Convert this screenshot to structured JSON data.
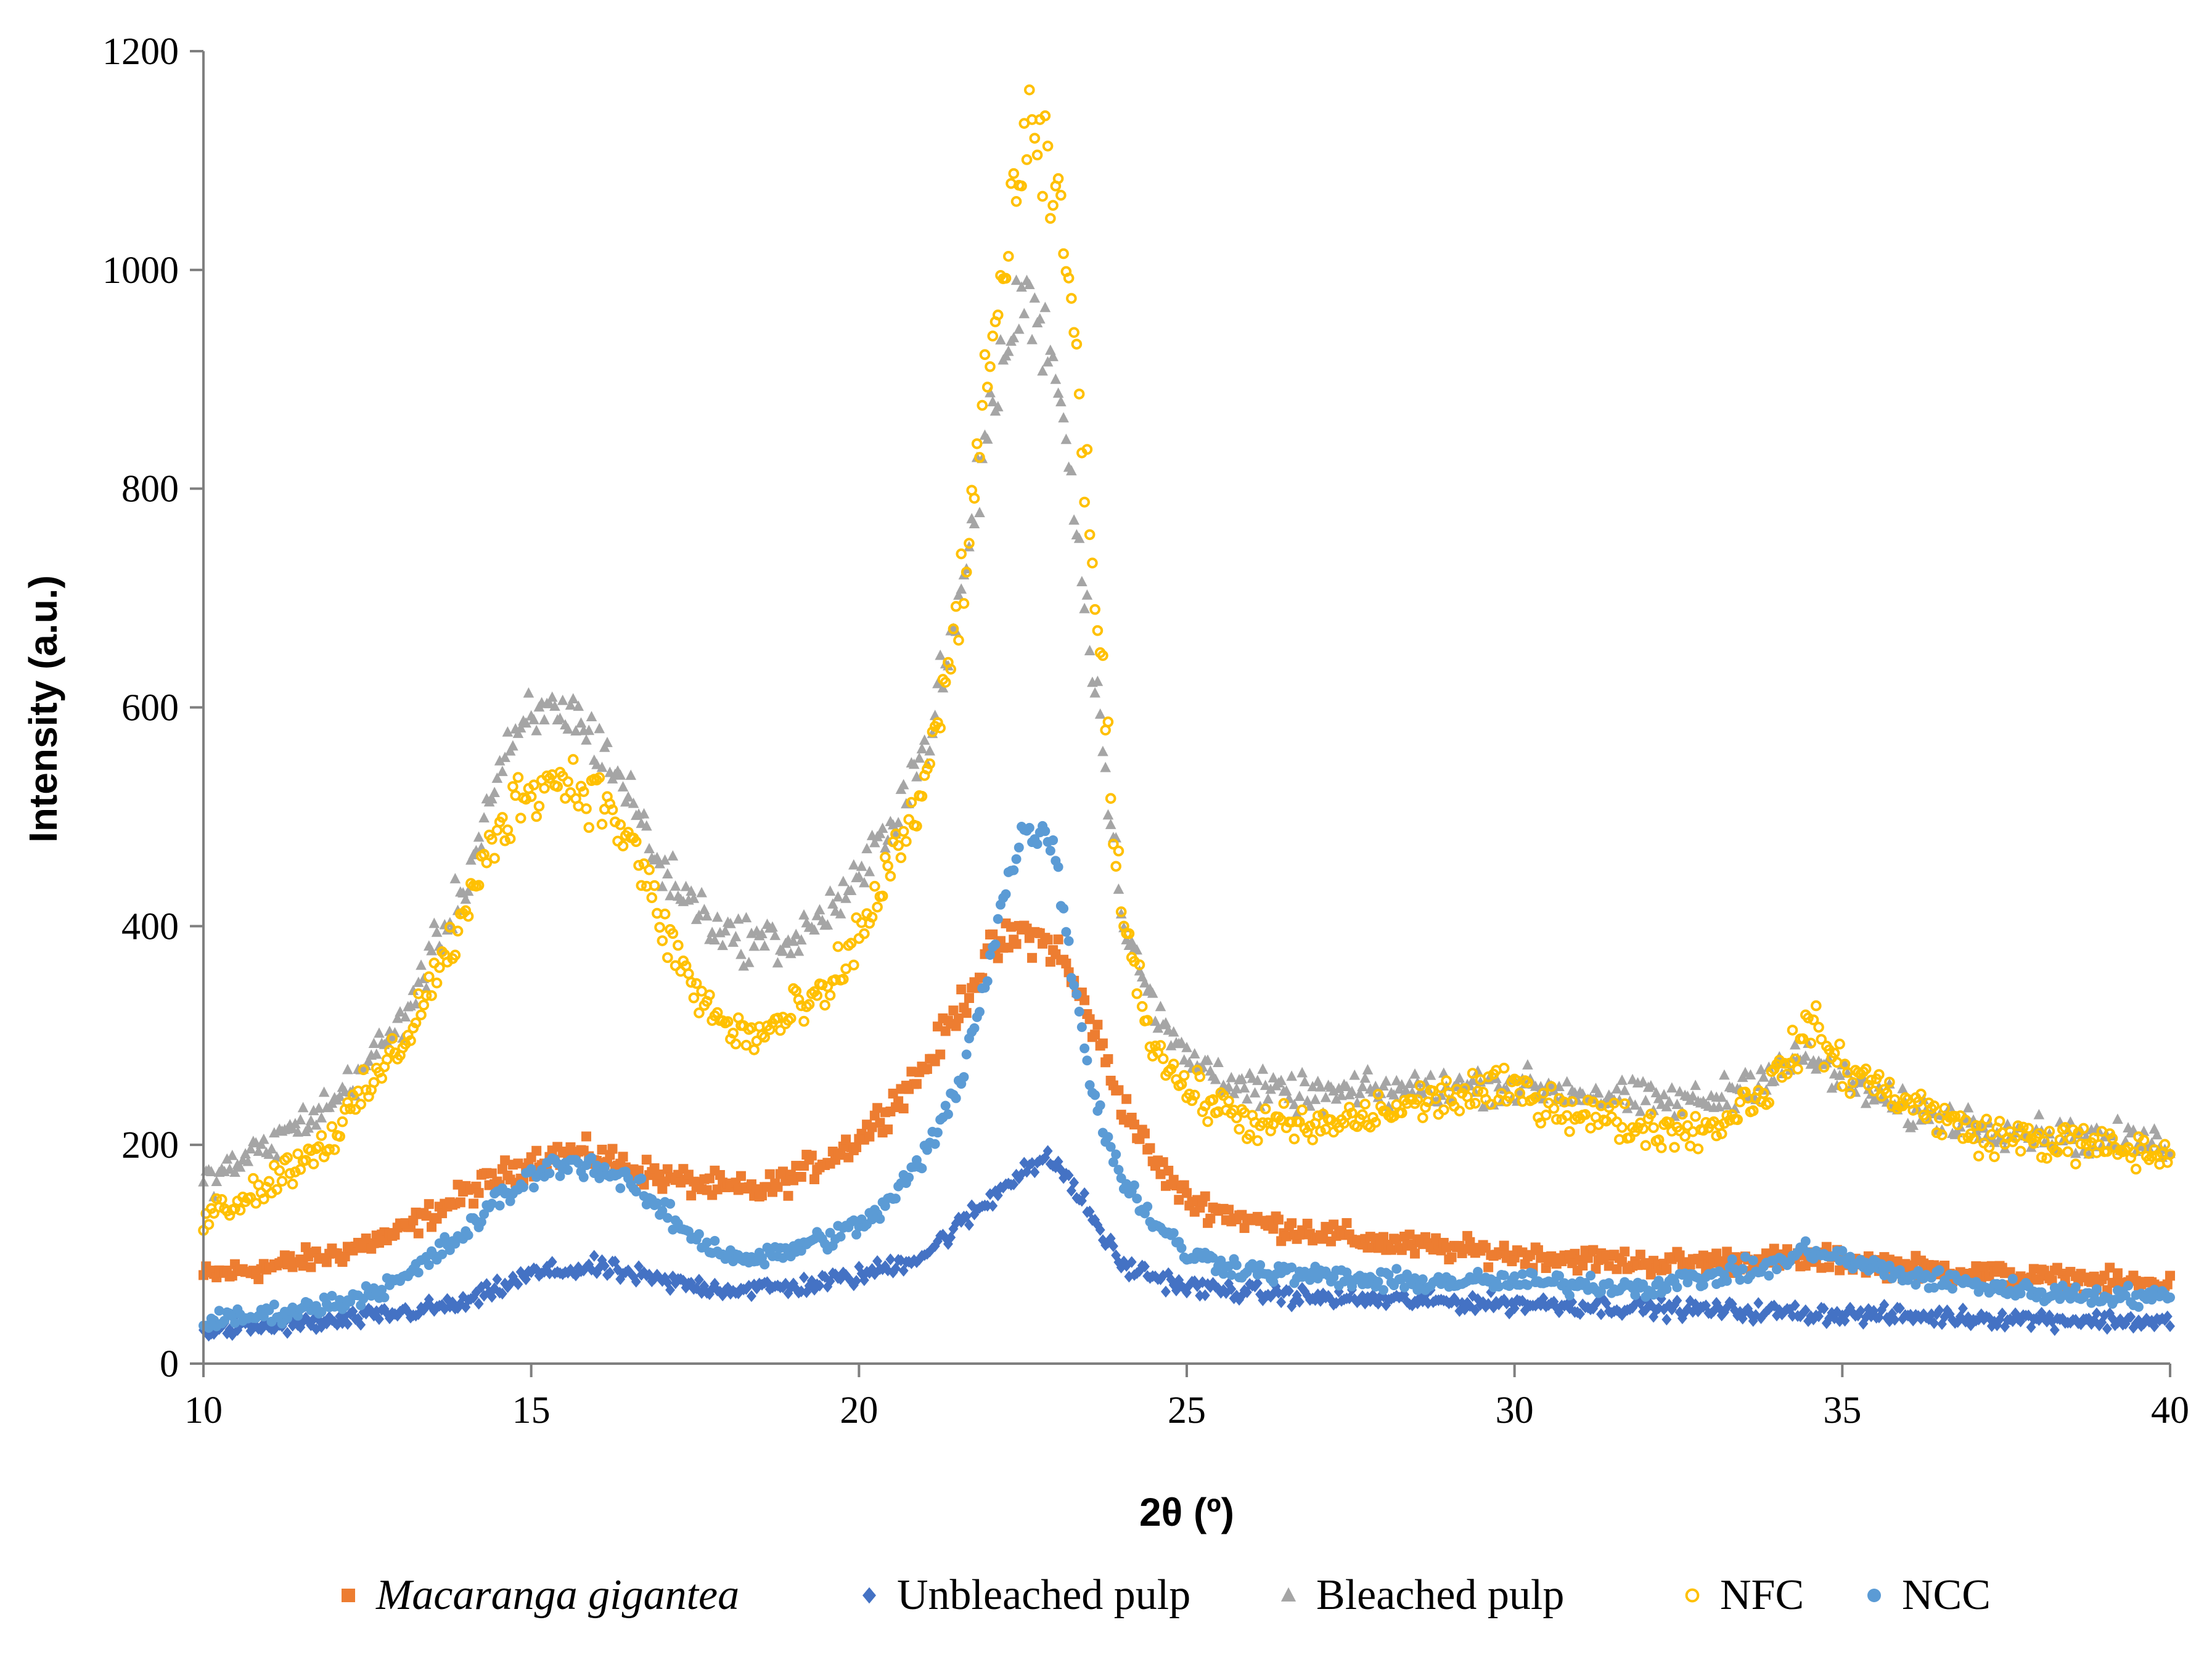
{
  "chart_data": {
    "type": "scatter",
    "title": "",
    "xlabel": "2θ (º)",
    "ylabel": "Intensity (a.u.)",
    "xlim": [
      10,
      40
    ],
    "ylim": [
      0,
      1200
    ],
    "xticks": [
      10,
      15,
      20,
      25,
      30,
      35,
      40
    ],
    "yticks": [
      0,
      200,
      400,
      600,
      800,
      1000,
      1200
    ],
    "xtick_labels": [
      "10",
      "15",
      "20",
      "25",
      "30",
      "35",
      "40"
    ],
    "ytick_labels": [
      "0",
      "200",
      "400",
      "600",
      "800",
      "1000",
      "1200"
    ],
    "grid": false,
    "legend_position": "bottom",
    "series": [
      {
        "name": "Macaranga gigantea",
        "marker": "square",
        "color": "#ED7D31",
        "noise": 12,
        "x": [
          10,
          11,
          12,
          13,
          14,
          15,
          15.5,
          16,
          17,
          18,
          18.5,
          19,
          20,
          21,
          22,
          22.5,
          23,
          23.5,
          24,
          24.5,
          25,
          26,
          28,
          30,
          32,
          34,
          35,
          36,
          38,
          40
        ],
        "values": [
          80,
          88,
          100,
          120,
          155,
          185,
          192,
          190,
          170,
          160,
          158,
          170,
          205,
          270,
          375,
          395,
          380,
          320,
          240,
          185,
          150,
          130,
          110,
          100,
          92,
          95,
          95,
          88,
          78,
          72
        ]
      },
      {
        "name": "Unbleached pulp",
        "marker": "diamond",
        "color": "#4472C4",
        "noise": 10,
        "x": [
          10,
          12,
          14,
          15,
          16,
          17,
          18,
          19,
          20,
          21,
          22,
          22.5,
          23,
          23.5,
          24,
          25,
          27,
          30,
          35,
          40
        ],
        "values": [
          30,
          38,
          55,
          82,
          88,
          75,
          68,
          70,
          80,
          100,
          150,
          180,
          185,
          140,
          90,
          70,
          60,
          55,
          45,
          38
        ]
      },
      {
        "name": "Bleached pulp",
        "marker": "triangle",
        "color": "#A5A5A5",
        "noise": 14,
        "x": [
          10,
          11,
          12,
          13,
          14,
          14.5,
          15,
          15.5,
          16,
          16.5,
          17,
          18,
          19,
          20,
          21,
          21.5,
          22,
          22.5,
          23,
          23.5,
          24,
          24.5,
          25,
          26,
          27,
          28,
          30,
          32,
          33,
          34,
          34.5,
          35,
          36,
          38,
          40
        ],
        "values": [
          165,
          200,
          240,
          310,
          440,
          540,
          590,
          600,
          570,
          520,
          450,
          390,
          385,
          440,
          560,
          680,
          870,
          980,
          920,
          680,
          420,
          320,
          280,
          250,
          245,
          250,
          255,
          240,
          240,
          270,
          280,
          260,
          230,
          210,
          200
        ]
      },
      {
        "name": "NFC",
        "marker": "circle-open",
        "color": "#FFC000",
        "noise": 16,
        "x": [
          10,
          11,
          12,
          13,
          14,
          14.5,
          15,
          15.5,
          16,
          16.5,
          17,
          17.5,
          18,
          18.5,
          19,
          19.5,
          20,
          20.5,
          21,
          21.5,
          22,
          22.3,
          22.6,
          23,
          23.3,
          23.6,
          24,
          24.5,
          25,
          26,
          27,
          28,
          29,
          30,
          31,
          32,
          33,
          34,
          34.5,
          35,
          36,
          37,
          38,
          40
        ],
        "values": [
          135,
          165,
          210,
          290,
          410,
          490,
          530,
          535,
          520,
          480,
          400,
          340,
          305,
          300,
          320,
          335,
          390,
          460,
          520,
          680,
          910,
          1050,
          1120,
          1070,
          940,
          700,
          420,
          290,
          250,
          220,
          215,
          230,
          245,
          250,
          230,
          215,
          215,
          260,
          310,
          270,
          240,
          210,
          205,
          190
        ]
      },
      {
        "name": "NCC",
        "marker": "circle",
        "color": "#5B9BD5",
        "noise": 11,
        "x": [
          10,
          11,
          12,
          13,
          14,
          14.5,
          15,
          15.5,
          16,
          16.5,
          17,
          17.5,
          18,
          18.5,
          19,
          19.5,
          20,
          20.5,
          21,
          21.5,
          22,
          22.3,
          22.6,
          23,
          23.3,
          23.6,
          24,
          24.5,
          25,
          26,
          27,
          28,
          30,
          32,
          34,
          34.5,
          35,
          36,
          38,
          40
        ],
        "values": [
          38,
          45,
          55,
          75,
          120,
          150,
          170,
          185,
          180,
          165,
          140,
          115,
          100,
          95,
          105,
          115,
          125,
          150,
          190,
          250,
          370,
          450,
          495,
          470,
          340,
          240,
          170,
          130,
          100,
          85,
          80,
          75,
          75,
          70,
          90,
          105,
          95,
          80,
          65,
          60
        ]
      }
    ]
  }
}
